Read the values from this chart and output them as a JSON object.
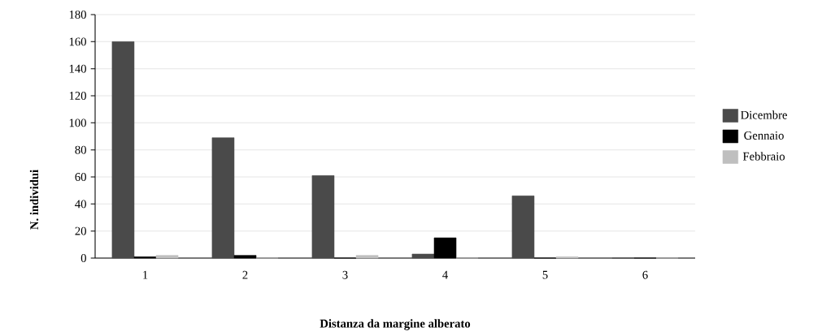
{
  "chart_data": {
    "type": "bar",
    "xlabel": "Distanza da margine alberato",
    "ylabel": "N. individui",
    "categories": [
      "1",
      "2",
      "3",
      "4",
      "5",
      "6"
    ],
    "series": [
      {
        "name": "Dicembre",
        "color": "#4a4a4a",
        "values": [
          160,
          89,
          61,
          3,
          46,
          0
        ]
      },
      {
        "name": "Gennaio",
        "color": "#000000",
        "values": [
          1,
          2,
          0,
          15,
          0,
          0
        ]
      },
      {
        "name": "Febbraio",
        "color": "#bfbfbf",
        "values": [
          2,
          0,
          2,
          0,
          1,
          0
        ]
      }
    ],
    "ylim": [
      0,
      180
    ],
    "yticks": [
      0,
      20,
      40,
      60,
      80,
      100,
      120,
      140,
      160,
      180
    ],
    "grid": "y",
    "legend": "right"
  }
}
